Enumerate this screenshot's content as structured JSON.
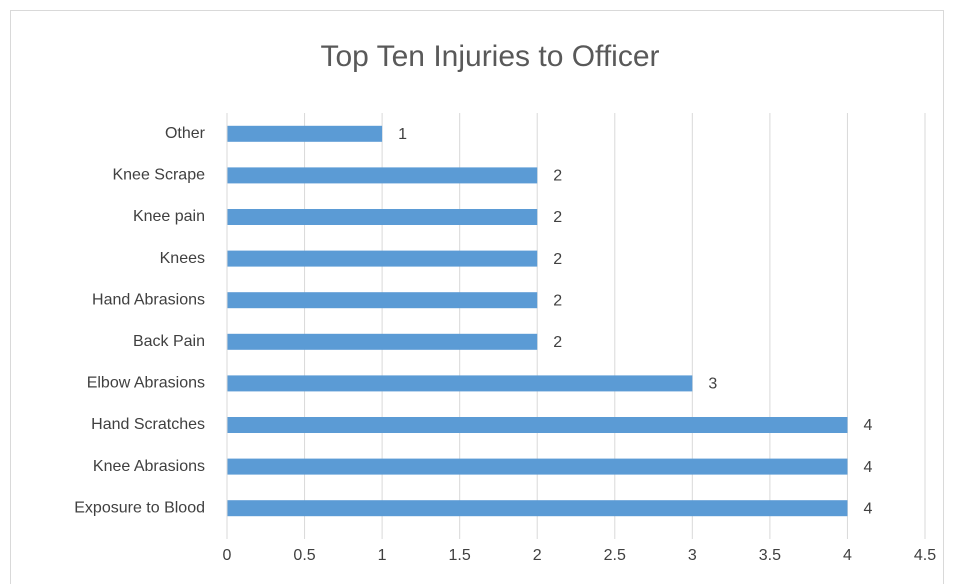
{
  "chart_data": {
    "type": "barh",
    "title": "Top Ten Injuries to Officer",
    "categories": [
      "Exposure to Blood",
      "Knee Abrasions",
      "Hand Scratches",
      "Elbow Abrasions",
      "Back Pain",
      "Hand Abrasions",
      "Knees",
      "Knee pain",
      "Knee Scrape",
      "Other"
    ],
    "values": [
      4,
      4,
      4,
      3,
      2,
      2,
      2,
      2,
      2,
      1
    ],
    "color": "#5b9bd5",
    "xlim": [
      0,
      4.5
    ],
    "xticks": [
      0,
      0.5,
      1,
      1.5,
      2,
      2.5,
      3,
      3.5,
      4,
      4.5
    ],
    "grid": true
  }
}
